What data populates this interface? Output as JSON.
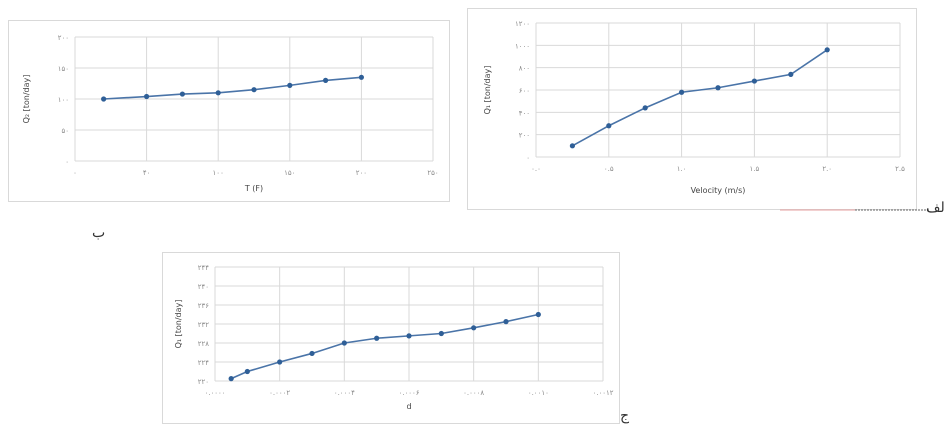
{
  "panel_letters": {
    "a": "الف",
    "b": "ب",
    "c": "ج"
  },
  "chart_data": [
    {
      "id": "T",
      "type": "line",
      "xlabel": "T (F)",
      "ylabel": "Q₂ [ton/day]",
      "x_ticks": [
        "۰",
        "۴۰",
        "۱۰۰",
        "۱۵۰",
        "۲۰۰",
        "۲۵۰"
      ],
      "y_ticks": [
        "۰",
        "۵۰",
        "۱۰۰",
        "۱۵۰",
        "۲۰۰"
      ],
      "xlim": [
        0,
        250
      ],
      "ylim": [
        0,
        200
      ],
      "grid": true,
      "series": [
        {
          "x": [
            20,
            50,
            75,
            100,
            125,
            150,
            175,
            200
          ],
          "y": [
            100,
            104,
            108,
            110,
            115,
            122,
            130,
            135
          ]
        }
      ]
    },
    {
      "id": "V",
      "type": "line",
      "xlabel": "Velocity (m/s)",
      "ylabel": "Q₁ [ton/day]",
      "x_ticks": [
        "۰.۰",
        "۰.۵",
        "۱.۰",
        "۱.۵",
        "۲.۰",
        "۲.۵"
      ],
      "y_ticks": [
        "۰",
        "۲۰۰",
        "۴۰۰",
        "۶۰۰",
        "۸۰۰",
        "۱۰۰۰",
        "۱۲۰۰"
      ],
      "xlim": [
        0,
        2.5
      ],
      "ylim": [
        0,
        1200
      ],
      "grid": true,
      "series": [
        {
          "x": [
            0.25,
            0.5,
            0.75,
            1.0,
            1.25,
            1.5,
            1.75,
            2.0
          ],
          "y": [
            100,
            280,
            440,
            580,
            620,
            680,
            740,
            960
          ]
        }
      ]
    },
    {
      "id": "D",
      "type": "line",
      "xlabel": "d",
      "ylabel": "Q₁ [ton/day]",
      "x_ticks": [
        "۰.۰۰۰۰",
        "۰.۰۰۰۲",
        "۰.۰۰۰۴",
        "۰.۰۰۰۶",
        "۰.۰۰۰۸",
        "۰.۰۰۱۰",
        "۰.۰۰۱۲"
      ],
      "y_ticks": [
        "۲۲۰",
        "۲۲۴",
        "۲۲۸",
        "۲۳۲",
        "۲۳۶",
        "۲۴۰",
        "۲۴۴"
      ],
      "xlim": [
        0,
        0.0012
      ],
      "ylim": [
        220,
        244
      ],
      "grid": true,
      "series": [
        {
          "x": [
            5e-05,
            0.0001,
            0.0002,
            0.0003,
            0.0004,
            0.0005,
            0.0006,
            0.0007,
            0.0008,
            0.0009,
            0.001
          ],
          "y": [
            220.5,
            222,
            224,
            225.8,
            228,
            229,
            229.5,
            230,
            231.2,
            232.5,
            234
          ]
        }
      ]
    }
  ]
}
